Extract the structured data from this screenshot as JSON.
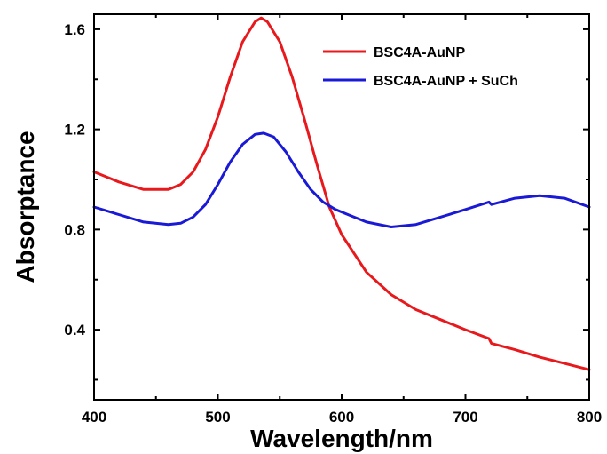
{
  "chart_data": {
    "type": "line",
    "xlabel": "Wavelength/nm",
    "ylabel": "Absorptance",
    "xlim": [
      400,
      800
    ],
    "ylim": [
      0.12,
      1.66
    ],
    "x_ticks": [
      400,
      500,
      600,
      700,
      800
    ],
    "x_tick_labels": [
      "400",
      "500",
      "600",
      "700",
      "800"
    ],
    "y_ticks": [
      0.4,
      0.8,
      1.2,
      1.6
    ],
    "y_tick_labels": [
      "0.4",
      "0.8",
      "1.2",
      "1.6"
    ],
    "grid": false,
    "legend_position": "top-right",
    "series": [
      {
        "name": "BSC4A-AuNP",
        "color": "#e8191c",
        "x": [
          400,
          420,
          440,
          460,
          470,
          480,
          490,
          500,
          510,
          520,
          530,
          535,
          540,
          550,
          560,
          570,
          580,
          590,
          600,
          620,
          640,
          660,
          680,
          700,
          719,
          721,
          740,
          760,
          780,
          800
        ],
        "y": [
          1.03,
          0.99,
          0.96,
          0.96,
          0.98,
          1.03,
          1.12,
          1.25,
          1.41,
          1.55,
          1.63,
          1.645,
          1.63,
          1.55,
          1.41,
          1.24,
          1.06,
          0.89,
          0.78,
          0.63,
          0.54,
          0.48,
          0.44,
          0.4,
          0.365,
          0.345,
          0.32,
          0.29,
          0.265,
          0.24
        ]
      },
      {
        "name": "BSC4A-AuNP + SuCh",
        "color": "#1a1ad6",
        "x": [
          400,
          420,
          440,
          460,
          470,
          480,
          490,
          500,
          510,
          520,
          530,
          537,
          545,
          555,
          565,
          575,
          585,
          595,
          605,
          620,
          640,
          660,
          680,
          700,
          719,
          721,
          740,
          760,
          780,
          800
        ],
        "y": [
          0.89,
          0.86,
          0.83,
          0.82,
          0.825,
          0.85,
          0.9,
          0.98,
          1.07,
          1.14,
          1.18,
          1.185,
          1.17,
          1.11,
          1.03,
          0.96,
          0.91,
          0.88,
          0.86,
          0.83,
          0.81,
          0.82,
          0.85,
          0.88,
          0.91,
          0.9,
          0.925,
          0.935,
          0.925,
          0.89
        ]
      }
    ]
  }
}
